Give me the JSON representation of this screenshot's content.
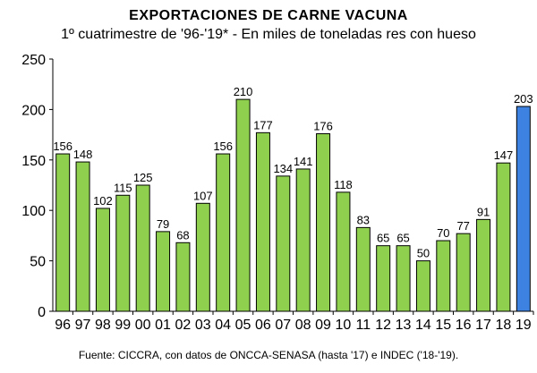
{
  "chart_data": {
    "type": "bar",
    "title": "EXPORTACIONES DE CARNE VACUNA",
    "subtitle": "1º cuatrimestre de '96-'19* - En miles de toneladas res con hueso",
    "source": "Fuente: CICCRA, con datos de ONCCA-SENASA (hasta '17) e INDEC ('18-'19).",
    "categories": [
      "96",
      "97",
      "98",
      "99",
      "00",
      "01",
      "02",
      "03",
      "04",
      "05",
      "06",
      "07",
      "08",
      "09",
      "10",
      "11",
      "12",
      "13",
      "14",
      "15",
      "16",
      "17",
      "18",
      "19"
    ],
    "values": [
      156,
      148,
      102,
      115,
      125,
      79,
      68,
      107,
      156,
      210,
      177,
      134,
      141,
      176,
      118,
      83,
      65,
      65,
      50,
      70,
      77,
      91,
      147,
      203
    ],
    "ylim": [
      0,
      250
    ],
    "yticks": [
      "0",
      "50",
      "100",
      "150",
      "200",
      "250"
    ],
    "grid": false,
    "legend": "none",
    "colors": {
      "bar": "#8fd14f",
      "bar_highlight": "#3d82e0",
      "bar_edge": "#000000"
    }
  }
}
